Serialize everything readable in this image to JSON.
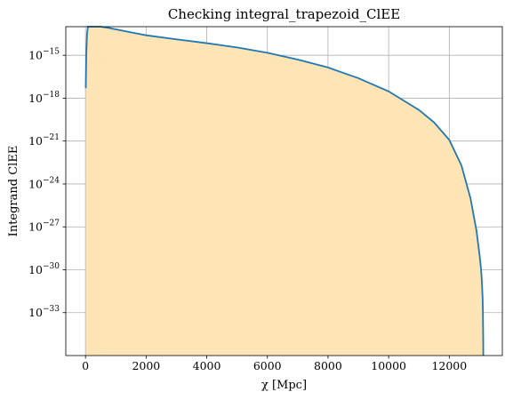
{
  "chart_data": {
    "type": "area",
    "title": "Checking integral_trapezoid_ClEE",
    "xlabel": "χ [Mpc]",
    "ylabel": "Integrand ClEE",
    "x_ticks": [
      0,
      2000,
      4000,
      6000,
      8000,
      10000,
      12000
    ],
    "x_tick_labels": [
      "0",
      "2000",
      "4000",
      "6000",
      "8000",
      "10000",
      "12000"
    ],
    "y_tick_exponents": [
      -15,
      -18,
      -21,
      -24,
      -27,
      -30,
      -33
    ],
    "y_tick_base": "10",
    "xlim": [
      -650,
      13750
    ],
    "ylim": [
      1e-36,
      1e-13
    ],
    "y_scale": "log",
    "grid": true,
    "line_color": "#1f77b4",
    "fill_color": "#ffe4b5",
    "series": [
      {
        "x": [
          10,
          25,
          50,
          80,
          120,
          170,
          200,
          300,
          500,
          800,
          1000,
          1500,
          2000,
          3000,
          4000,
          5000,
          6000,
          7000,
          8000,
          9000,
          10000,
          11000,
          11500,
          12000,
          12400,
          12700,
          12900,
          13000,
          13050,
          13080,
          13100,
          13110,
          13115,
          13120,
          13122
        ],
        "y": [
          5e-18,
          1e-15,
          3e-14,
          1e-13,
          1.6e-13,
          2e-13,
          2e-13,
          1.7e-13,
          1.2e-13,
          8e-14,
          6.5e-14,
          4e-14,
          2.5e-14,
          1.3e-14,
          7e-15,
          3.5e-15,
          1.5e-15,
          5e-16,
          1.4e-16,
          2.5e-17,
          3e-18,
          1.5e-19,
          2e-20,
          1.2e-21,
          2e-23,
          1e-25,
          5e-28,
          1e-29,
          1e-30,
          1e-31,
          1e-32,
          1e-33,
          1e-34,
          1e-35,
          1e-36
        ]
      }
    ]
  }
}
